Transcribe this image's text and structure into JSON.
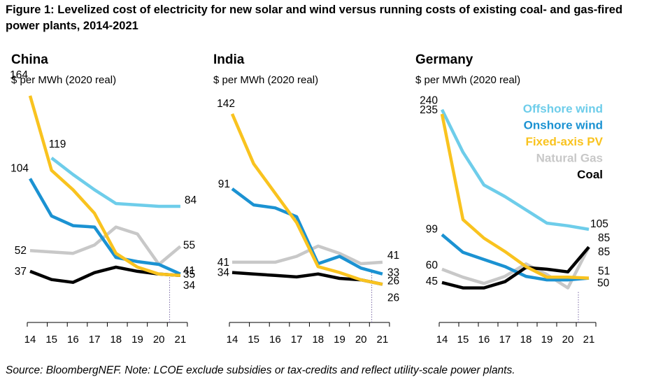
{
  "figure": {
    "title": "Figure 1: Levelized cost of electricity for new solar and wind versus running costs of existing coal- and gas-fired power plants, 2014-2021",
    "source": "Source: BloombergNEF. Note: LCOE exclude subsidies or tax-credits and reflect utility-scale power plants."
  },
  "legend": [
    {
      "name": "Offshore wind",
      "color": "#6ECDEA"
    },
    {
      "name": "Onshore wind",
      "color": "#1B92D2"
    },
    {
      "name": "Fixed-axis PV",
      "color": "#F9C31F"
    },
    {
      "name": "Natural Gas",
      "color": "#C8C8C8"
    },
    {
      "name": "Coal",
      "color": "#000000"
    }
  ],
  "chart_data": [
    {
      "type": "line",
      "title": "China",
      "ylabel": "$ per MWh (2020 real)",
      "x": [
        "14",
        "15",
        "16",
        "17",
        "18",
        "19",
        "20",
        "21"
      ],
      "ylim": [
        0,
        170
      ],
      "grid": false,
      "series": [
        {
          "name": "Offshore wind",
          "values": [
            null,
            119,
            107,
            96,
            86,
            85,
            84,
            84
          ],
          "color": "#6ECDEA"
        },
        {
          "name": "Onshore wind",
          "values": [
            104,
            77,
            70,
            69,
            47,
            44,
            42,
            35
          ],
          "color": "#1B92D2"
        },
        {
          "name": "Fixed-axis PV",
          "values": [
            164,
            110,
            96,
            79,
            50,
            40,
            35,
            34
          ],
          "color": "#F9C31F"
        },
        {
          "name": "Natural Gas",
          "values": [
            52,
            51,
            50,
            56,
            69,
            64,
            42,
            55
          ],
          "color": "#C8C8C8"
        },
        {
          "name": "Coal",
          "values": [
            37,
            31,
            29,
            36,
            40,
            37,
            35,
            34
          ],
          "color": "#000000"
        }
      ],
      "annotations": [
        "164",
        "119",
        "104",
        "52",
        "37",
        "84",
        "55",
        "41",
        "35",
        "34"
      ]
    },
    {
      "type": "line",
      "title": "India",
      "ylabel": "$ per MWh (2020 real)",
      "x": [
        "14",
        "15",
        "16",
        "17",
        "18",
        "19",
        "20",
        "21"
      ],
      "ylim": [
        0,
        160
      ],
      "grid": false,
      "series": [
        {
          "name": "Onshore wind",
          "values": [
            91,
            80,
            78,
            72,
            40,
            45,
            37,
            33
          ],
          "color": "#1B92D2"
        },
        {
          "name": "Fixed-axis PV",
          "values": [
            142,
            108,
            88,
            68,
            38,
            34,
            29,
            26
          ],
          "color": "#F9C31F"
        },
        {
          "name": "Natural Gas",
          "values": [
            41,
            41,
            41,
            45,
            52,
            47,
            40,
            41
          ],
          "color": "#C8C8C8"
        },
        {
          "name": "Coal",
          "values": [
            34,
            33,
            32,
            31,
            33,
            30,
            29,
            26
          ],
          "color": "#000000"
        }
      ],
      "annotations": [
        "142",
        "91",
        "41",
        "34",
        "41",
        "33",
        "26",
        "26"
      ]
    },
    {
      "type": "line",
      "title": "Germany",
      "ylabel": "$ per MWh (2020 real)",
      "x": [
        "14",
        "15",
        "16",
        "17",
        "18",
        "19",
        "20",
        "21"
      ],
      "ylim": [
        0,
        265
      ],
      "grid": false,
      "series": [
        {
          "name": "Offshore wind",
          "values": [
            240,
            192,
            155,
            142,
            127,
            112,
            109,
            105
          ],
          "color": "#6ECDEA"
        },
        {
          "name": "Onshore wind",
          "values": [
            99,
            79,
            71,
            63,
            52,
            48,
            48,
            50
          ],
          "color": "#1B92D2"
        },
        {
          "name": "Fixed-axis PV",
          "values": [
            235,
            116,
            95,
            80,
            63,
            51,
            51,
            50
          ],
          "color": "#F9C31F"
        },
        {
          "name": "Natural Gas",
          "values": [
            60,
            51,
            44,
            52,
            66,
            54,
            39,
            85
          ],
          "color": "#C8C8C8"
        },
        {
          "name": "Coal",
          "values": [
            45,
            39,
            39,
            46,
            62,
            60,
            57,
            85
          ],
          "color": "#000000"
        }
      ],
      "annotations": [
        "240",
        "235",
        "99",
        "60",
        "45",
        "105",
        "85",
        "85",
        "51",
        "50"
      ]
    }
  ]
}
